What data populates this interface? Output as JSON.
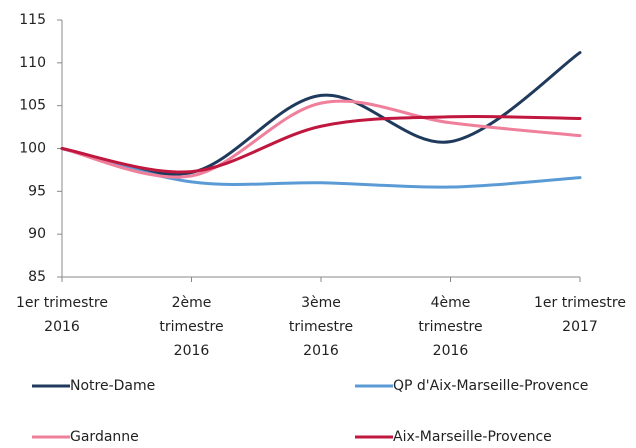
{
  "chart_data": {
    "type": "line",
    "categories": [
      [
        "1er trimestre",
        "2016"
      ],
      [
        "2ème",
        "trimestre",
        "2016"
      ],
      [
        "3ème",
        "trimestre",
        "2016"
      ],
      [
        "4ème",
        "trimestre",
        "2016"
      ],
      [
        "1er trimestre",
        "2017"
      ]
    ],
    "series": [
      {
        "name": "Notre-Dame",
        "color": "#1f3a5c",
        "values": [
          100,
          97.2,
          106.2,
          100.8,
          111.2
        ]
      },
      {
        "name": "QP d'Aix-Marseille-Provence",
        "color": "#5b9bd5",
        "values": [
          100,
          96.1,
          96.0,
          95.5,
          96.6
        ]
      },
      {
        "name": "Gardanne",
        "color": "#ef7f9a",
        "values": [
          100,
          96.8,
          105.3,
          103.0,
          101.5
        ]
      },
      {
        "name": "Aix-Marseille-Provence",
        "color": "#c0173f",
        "values": [
          100,
          97.3,
          102.6,
          103.7,
          103.5
        ]
      }
    ],
    "ylim": [
      85,
      115
    ],
    "yticks": [
      85,
      90,
      95,
      100,
      105,
      110,
      115
    ],
    "grid": false
  }
}
